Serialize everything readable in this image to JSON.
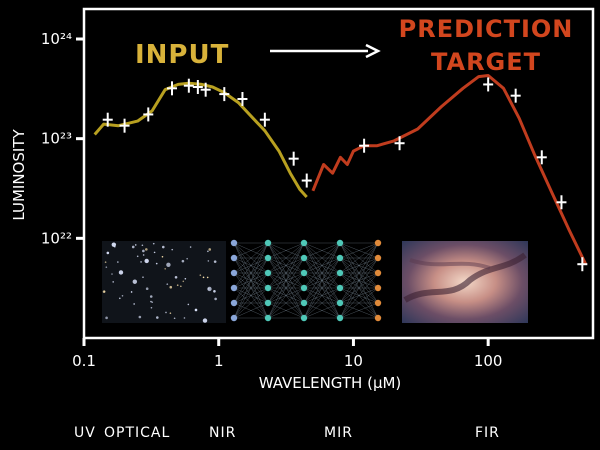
{
  "chart_data": {
    "type": "line",
    "ylabel": "LUMINOSITY",
    "xlabel": "WAVELENGTH (μM)",
    "x_scale": "log",
    "y_scale": "log",
    "xlim": [
      0.1,
      600
    ],
    "ylim": [
      1e+21,
      2e+24
    ],
    "x_ticks": [
      {
        "value": 0.1,
        "label": "0.1"
      },
      {
        "value": 1,
        "label": "1"
      },
      {
        "value": 10,
        "label": "10"
      },
      {
        "value": 100,
        "label": "100"
      }
    ],
    "y_ticks": [
      {
        "value": 1e+22,
        "label": "10²²"
      },
      {
        "value": 1e+23,
        "label": "10²³"
      },
      {
        "value": 1e+24,
        "label": "10²⁴"
      }
    ],
    "annotations": {
      "input": "INPUT",
      "target_line1": "PREDICTION",
      "target_line2": "TARGET"
    },
    "bands": [
      "UV",
      "OPTICAL",
      "NIR",
      "MIR",
      "FIR"
    ],
    "series": [
      {
        "name": "input",
        "color": "#b8a020",
        "x": [
          0.12,
          0.14,
          0.18,
          0.25,
          0.32,
          0.4,
          0.5,
          0.6,
          0.75,
          0.9,
          1.1,
          1.4,
          1.8,
          2.2,
          2.8,
          3.4,
          4.0,
          4.5
        ],
        "y": [
          1.1e+23,
          1.4e+23,
          1.35e+23,
          1.5e+23,
          1.9e+23,
          3.1e+23,
          3.5e+23,
          3.6e+23,
          3.5e+23,
          3.3e+23,
          2.9e+23,
          2.3e+23,
          1.6e+23,
          1.2e+23,
          7.5e+22,
          4.5e+22,
          3.1e+22,
          2.6e+22
        ]
      },
      {
        "name": "target",
        "color": "#c03c1e",
        "x": [
          5,
          6,
          7,
          8,
          9,
          10,
          12,
          15,
          20,
          30,
          45,
          65,
          85,
          100,
          130,
          170,
          220,
          300,
          400,
          530
        ],
        "y": [
          3e+22,
          5.5e+22,
          4.5e+22,
          6.5e+22,
          5.5e+22,
          7.5e+22,
          8.5e+22,
          8.5e+22,
          9.5e+22,
          1.25e+23,
          2.1e+23,
          3.2e+23,
          4.2e+23,
          4.3e+23,
          3.2e+23,
          1.6e+23,
          7e+22,
          2.8e+22,
          1.2e+22,
          5.5e+21
        ]
      },
      {
        "name": "photometry",
        "color": "#ffffff",
        "x": [
          0.15,
          0.2,
          0.3,
          0.45,
          0.6,
          0.7,
          0.8,
          1.1,
          1.5,
          2.2,
          3.6,
          4.5,
          12,
          22,
          100,
          160,
          250,
          350,
          500
        ],
        "y": [
          1.55e+23,
          1.35e+23,
          1.75e+23,
          3.2e+23,
          3.4e+23,
          3.3e+23,
          3.1e+23,
          2.8e+23,
          2.5e+23,
          1.55e+23,
          6.3e+22,
          3.8e+22,
          8.5e+22,
          9e+22,
          3.5e+23,
          2.7e+23,
          6.5e+22,
          2.3e+22,
          5.5e+21
        ]
      }
    ]
  },
  "insets": {
    "left": "star-field-image",
    "middle": "neural-network-diagram",
    "right": "dusty-nebula-image"
  }
}
